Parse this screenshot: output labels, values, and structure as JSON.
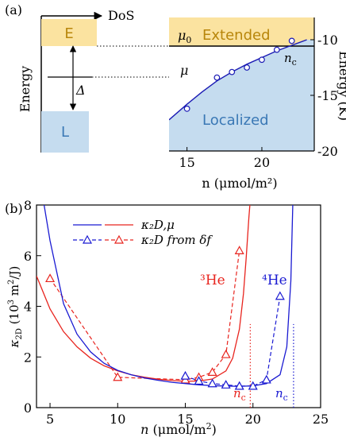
{
  "panel_a": {
    "label": "(a)",
    "dos_label": "DoS",
    "energy_label": "Energy",
    "E_label": "E",
    "L_label": "L",
    "delta_label": "Δ",
    "mu0_label": "μ",
    "mu0_sub": "0",
    "mu_label": "μ",
    "nc_label": "n",
    "nc_sub": "c",
    "extended_label": "Extended",
    "localized_label": "Localized",
    "right_axis_label": "Energy (K)",
    "xaxis_label": "n (μmol/m²)",
    "colors": {
      "E_fill": "#fbe3a0",
      "E_text": "#b8860b",
      "L_fill": "#c5dcef",
      "L_text": "#3a78b5",
      "curve": "#1a1ab4"
    }
  },
  "panel_b": {
    "label": "(b)",
    "legend_line": "κ₂D,μ",
    "legend_marker": "κ₂D from δf",
    "he3_label": "³He",
    "he4_label": "⁴He",
    "nc_label": "n",
    "nc_sub": "c",
    "colors": {
      "he3": "#e8241e",
      "he4": "#1a1ad2"
    }
  },
  "chart_data": [
    {
      "type": "scatter",
      "panel": "(a)",
      "xlabel": "n (μmol/m²)",
      "ylabel": "Energy (K)",
      "xlim": [
        13.8,
        23.5
      ],
      "ylim": [
        -20,
        -8
      ],
      "xticks": [
        15,
        20
      ],
      "yticks": [
        -10,
        -15,
        -20
      ],
      "mu0_level": -10,
      "nc": 23,
      "series": [
        {
          "name": "μ",
          "kind": "line",
          "x": [
            13.8,
            15,
            16,
            17,
            18,
            19,
            20,
            21,
            22,
            23
          ],
          "y": [
            -17.2,
            -15.8,
            -14.7,
            -13.7,
            -12.9,
            -12.2,
            -11.6,
            -11.0,
            -10.5,
            -10.0
          ]
        },
        {
          "name": "points",
          "kind": "markers",
          "x": [
            15,
            17,
            18,
            19,
            20,
            21,
            22
          ],
          "y": [
            -16.2,
            -13.4,
            -12.9,
            -12.5,
            -11.8,
            -10.9,
            -10.1
          ]
        }
      ]
    },
    {
      "type": "line",
      "panel": "(b)",
      "xlabel": "n (μmol/m²)",
      "ylabel": "κ2D (10³ m²/J)",
      "xlim": [
        4,
        25
      ],
      "ylim": [
        0,
        8
      ],
      "xticks": [
        5,
        10,
        15,
        20,
        25
      ],
      "yticks": [
        0,
        2,
        4,
        6,
        8
      ],
      "series": [
        {
          "name": "³He κ2D,μ",
          "kind": "line",
          "x": [
            4,
            5,
            6,
            7,
            8,
            9,
            10,
            11,
            12,
            13,
            14,
            15,
            16,
            17,
            18,
            18.5,
            19,
            19.3,
            19.5,
            19.7,
            19.8
          ],
          "y": [
            5.2,
            3.9,
            3.0,
            2.4,
            1.95,
            1.65,
            1.45,
            1.3,
            1.2,
            1.12,
            1.07,
            1.04,
            1.05,
            1.13,
            1.45,
            1.95,
            3.1,
            4.5,
            5.9,
            7.5,
            8.2
          ]
        },
        {
          "name": "³He κ2D from δf",
          "kind": "markers",
          "x": [
            5,
            10,
            15,
            16,
            17,
            18,
            19
          ],
          "y": [
            5.1,
            1.2,
            1.1,
            1.2,
            1.4,
            2.1,
            6.2
          ]
        },
        {
          "name": "⁴He κ2D,μ",
          "kind": "line",
          "x": [
            4.5,
            5,
            6,
            7,
            8,
            9,
            10,
            11,
            12,
            13,
            14,
            15,
            16,
            17,
            18,
            19,
            20,
            21,
            22,
            22.5,
            22.8,
            22.95
          ],
          "y": [
            8.2,
            6.6,
            4.1,
            2.9,
            2.2,
            1.75,
            1.47,
            1.3,
            1.17,
            1.08,
            1.0,
            0.95,
            0.9,
            0.87,
            0.85,
            0.84,
            0.86,
            0.95,
            1.3,
            2.4,
            5.0,
            8.2
          ]
        },
        {
          "name": "⁴He κ2D from δf",
          "kind": "markers",
          "x": [
            15,
            16,
            17,
            18,
            19,
            20,
            21,
            22
          ],
          "y": [
            1.25,
            1.05,
            0.95,
            0.9,
            0.85,
            0.85,
            1.1,
            4.4
          ]
        }
      ],
      "nc_lines": {
        "he3": 19.8,
        "he4": 23.0
      }
    }
  ]
}
